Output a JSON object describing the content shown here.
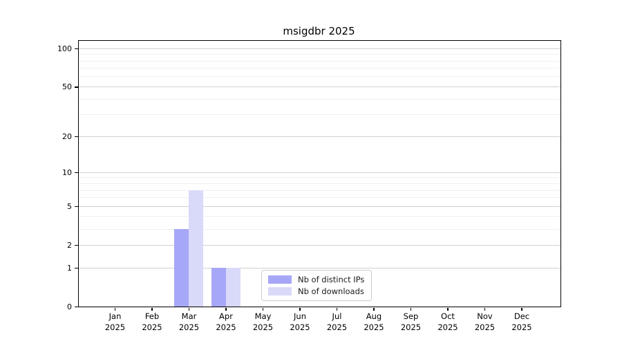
{
  "chart_data": {
    "type": "bar",
    "title": "msigdbr 2025",
    "categories": [
      "Jan",
      "Feb",
      "Mar",
      "Apr",
      "May",
      "Jun",
      "Jul",
      "Aug",
      "Sep",
      "Oct",
      "Nov",
      "Dec"
    ],
    "category_year": "2025",
    "series": [
      {
        "name": "Nb of distinct IPs",
        "color": "#a7a7f7",
        "values": [
          0,
          0,
          3,
          1,
          0,
          0,
          0,
          0,
          0,
          0,
          0,
          0
        ]
      },
      {
        "name": "Nb of downloads",
        "color": "#d9d9f9",
        "values": [
          0,
          0,
          7,
          1,
          0,
          0,
          0,
          0,
          0,
          0,
          0,
          0
        ]
      }
    ],
    "y_scale": "log1p",
    "y_ticks": [
      0,
      1,
      2,
      5,
      10,
      20,
      50,
      100
    ],
    "y_minor_ticks": [
      3,
      4,
      6,
      7,
      8,
      9,
      30,
      40,
      60,
      70,
      80,
      90
    ],
    "ylim": [
      0,
      115
    ],
    "grid": "horizontal",
    "legend_position": "lower-center-inside",
    "colors": {
      "axis": "#000000",
      "major_grid": "#d0d0d0",
      "minor_grid": "#efefef",
      "background": "#ffffff"
    }
  }
}
